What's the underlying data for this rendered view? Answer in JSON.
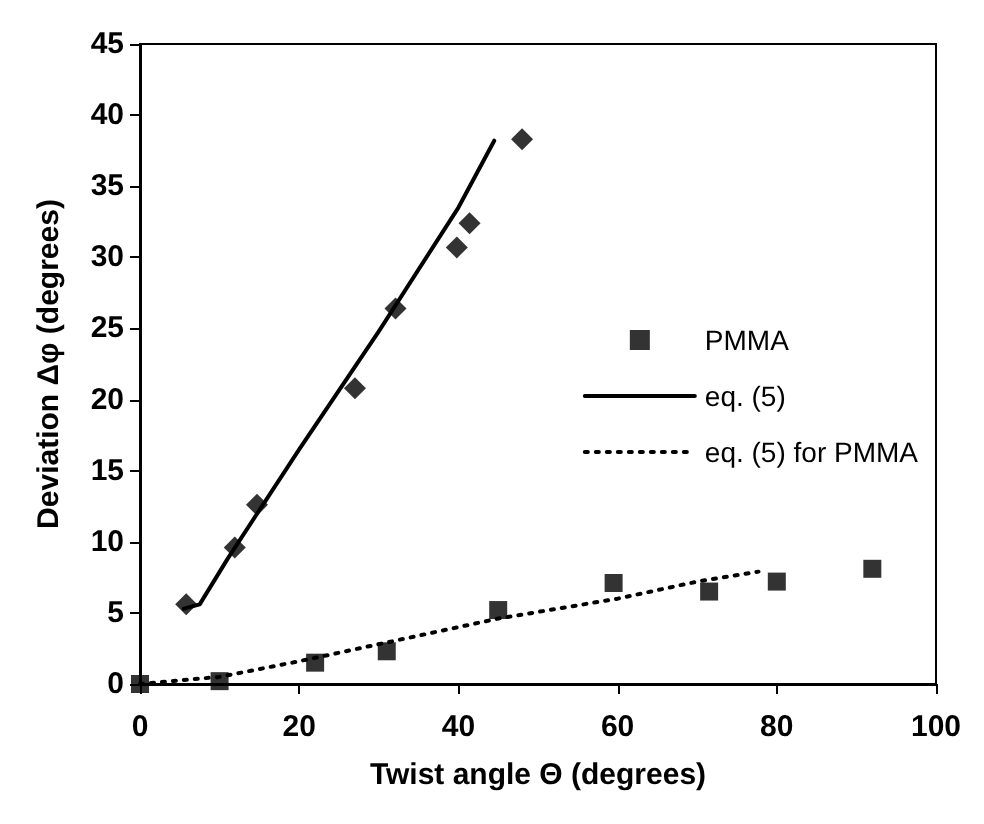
{
  "chart_data": {
    "type": "scatter",
    "xlabel": "Twist angle Θ (degrees)",
    "ylabel": "Deviation Δφ (degrees)",
    "xlim": [
      0,
      100
    ],
    "xticks": [
      0,
      20,
      40,
      60,
      80,
      100
    ],
    "ylim": [
      0,
      45
    ],
    "yticks": [
      0,
      5,
      10,
      15,
      20,
      25,
      30,
      35,
      40,
      45
    ],
    "grid": false,
    "legend": "right",
    "series": [
      {
        "type": "scatter",
        "marker": "diamond",
        "color": "#000000",
        "x": [
          5.8,
          11.9,
          14.7,
          27,
          32.1,
          39.8,
          41.4,
          48
        ],
        "values": [
          5.6,
          9.6,
          12.6,
          20.8,
          26.4,
          30.7,
          32.4,
          38.3
        ]
      },
      {
        "type": "scatter",
        "name": "PMMA",
        "marker": "square",
        "color": "#000000",
        "x": [
          0,
          10,
          22,
          31,
          45,
          59.5,
          71.5,
          80,
          92
        ],
        "values": [
          0,
          0.2,
          1.5,
          2.3,
          5.2,
          7.1,
          6.5,
          7.2,
          8.1
        ]
      },
      {
        "type": "line",
        "name": "eq. (5)",
        "marker": "none",
        "line_style": "solid",
        "color": "#000000",
        "x": [
          5.5,
          7.5,
          11,
          20,
          30,
          40,
          44.5
        ],
        "values": [
          5.3,
          5.6,
          8.8,
          16.5,
          24.8,
          33.5,
          38.2
        ]
      },
      {
        "type": "line",
        "name": "eq. (5) for PMMA",
        "marker": "none",
        "line_style": "dotted",
        "color": "#000000",
        "x": [
          0,
          10,
          20,
          30,
          45,
          60,
          70,
          77.7
        ],
        "values": [
          0,
          0.5,
          1.6,
          2.8,
          4.6,
          6.0,
          7.2,
          7.9
        ]
      }
    ]
  }
}
